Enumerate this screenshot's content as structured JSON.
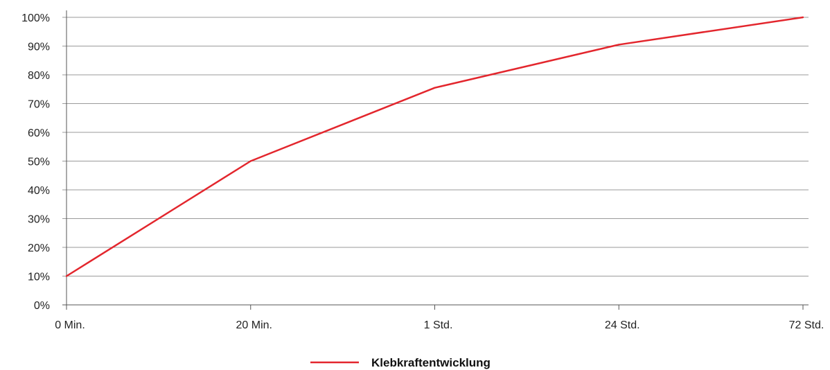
{
  "chart_data": {
    "type": "line",
    "title": "",
    "xlabel": "",
    "ylabel": "",
    "categories": [
      "0 Min.",
      "20 Min.",
      "1 Std.",
      "24 Std.",
      "72 Std."
    ],
    "y_ticks": [
      "0%",
      "10%",
      "20%",
      "30%",
      "40%",
      "50%",
      "60%",
      "70%",
      "80%",
      "90%",
      "100%"
    ],
    "ylim": [
      0,
      100
    ],
    "y_unit": "%",
    "grid": "horizontal",
    "legend_position": "bottom-center",
    "series": [
      {
        "name": "Klebkraftentwicklung",
        "color": "#e3262d",
        "values": [
          10,
          50,
          75.5,
          90.5,
          100
        ]
      }
    ]
  },
  "colors": {
    "grid": "#9a9a9a",
    "axis": "#555555",
    "text": "#222222"
  }
}
